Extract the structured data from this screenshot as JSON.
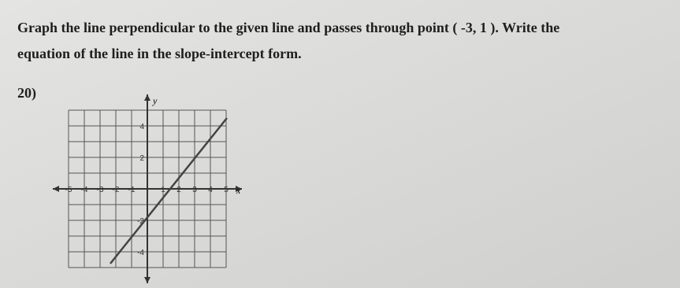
{
  "problem": {
    "text_line1": "Graph the line perpendicular to the given line and passes through point ( -3, 1 ). Write the",
    "text_line2": "equation of the line in the slope-intercept form.",
    "number": "20)"
  },
  "graph": {
    "y_axis_label": "y",
    "x_axis_label": "x",
    "x_tick_labels": [
      "-5",
      "-4",
      "-3",
      "-2",
      "-1",
      "1",
      "2",
      "3",
      "4",
      "5"
    ],
    "y_tick_labels": [
      "4",
      "2",
      "-2",
      "-4"
    ]
  }
}
